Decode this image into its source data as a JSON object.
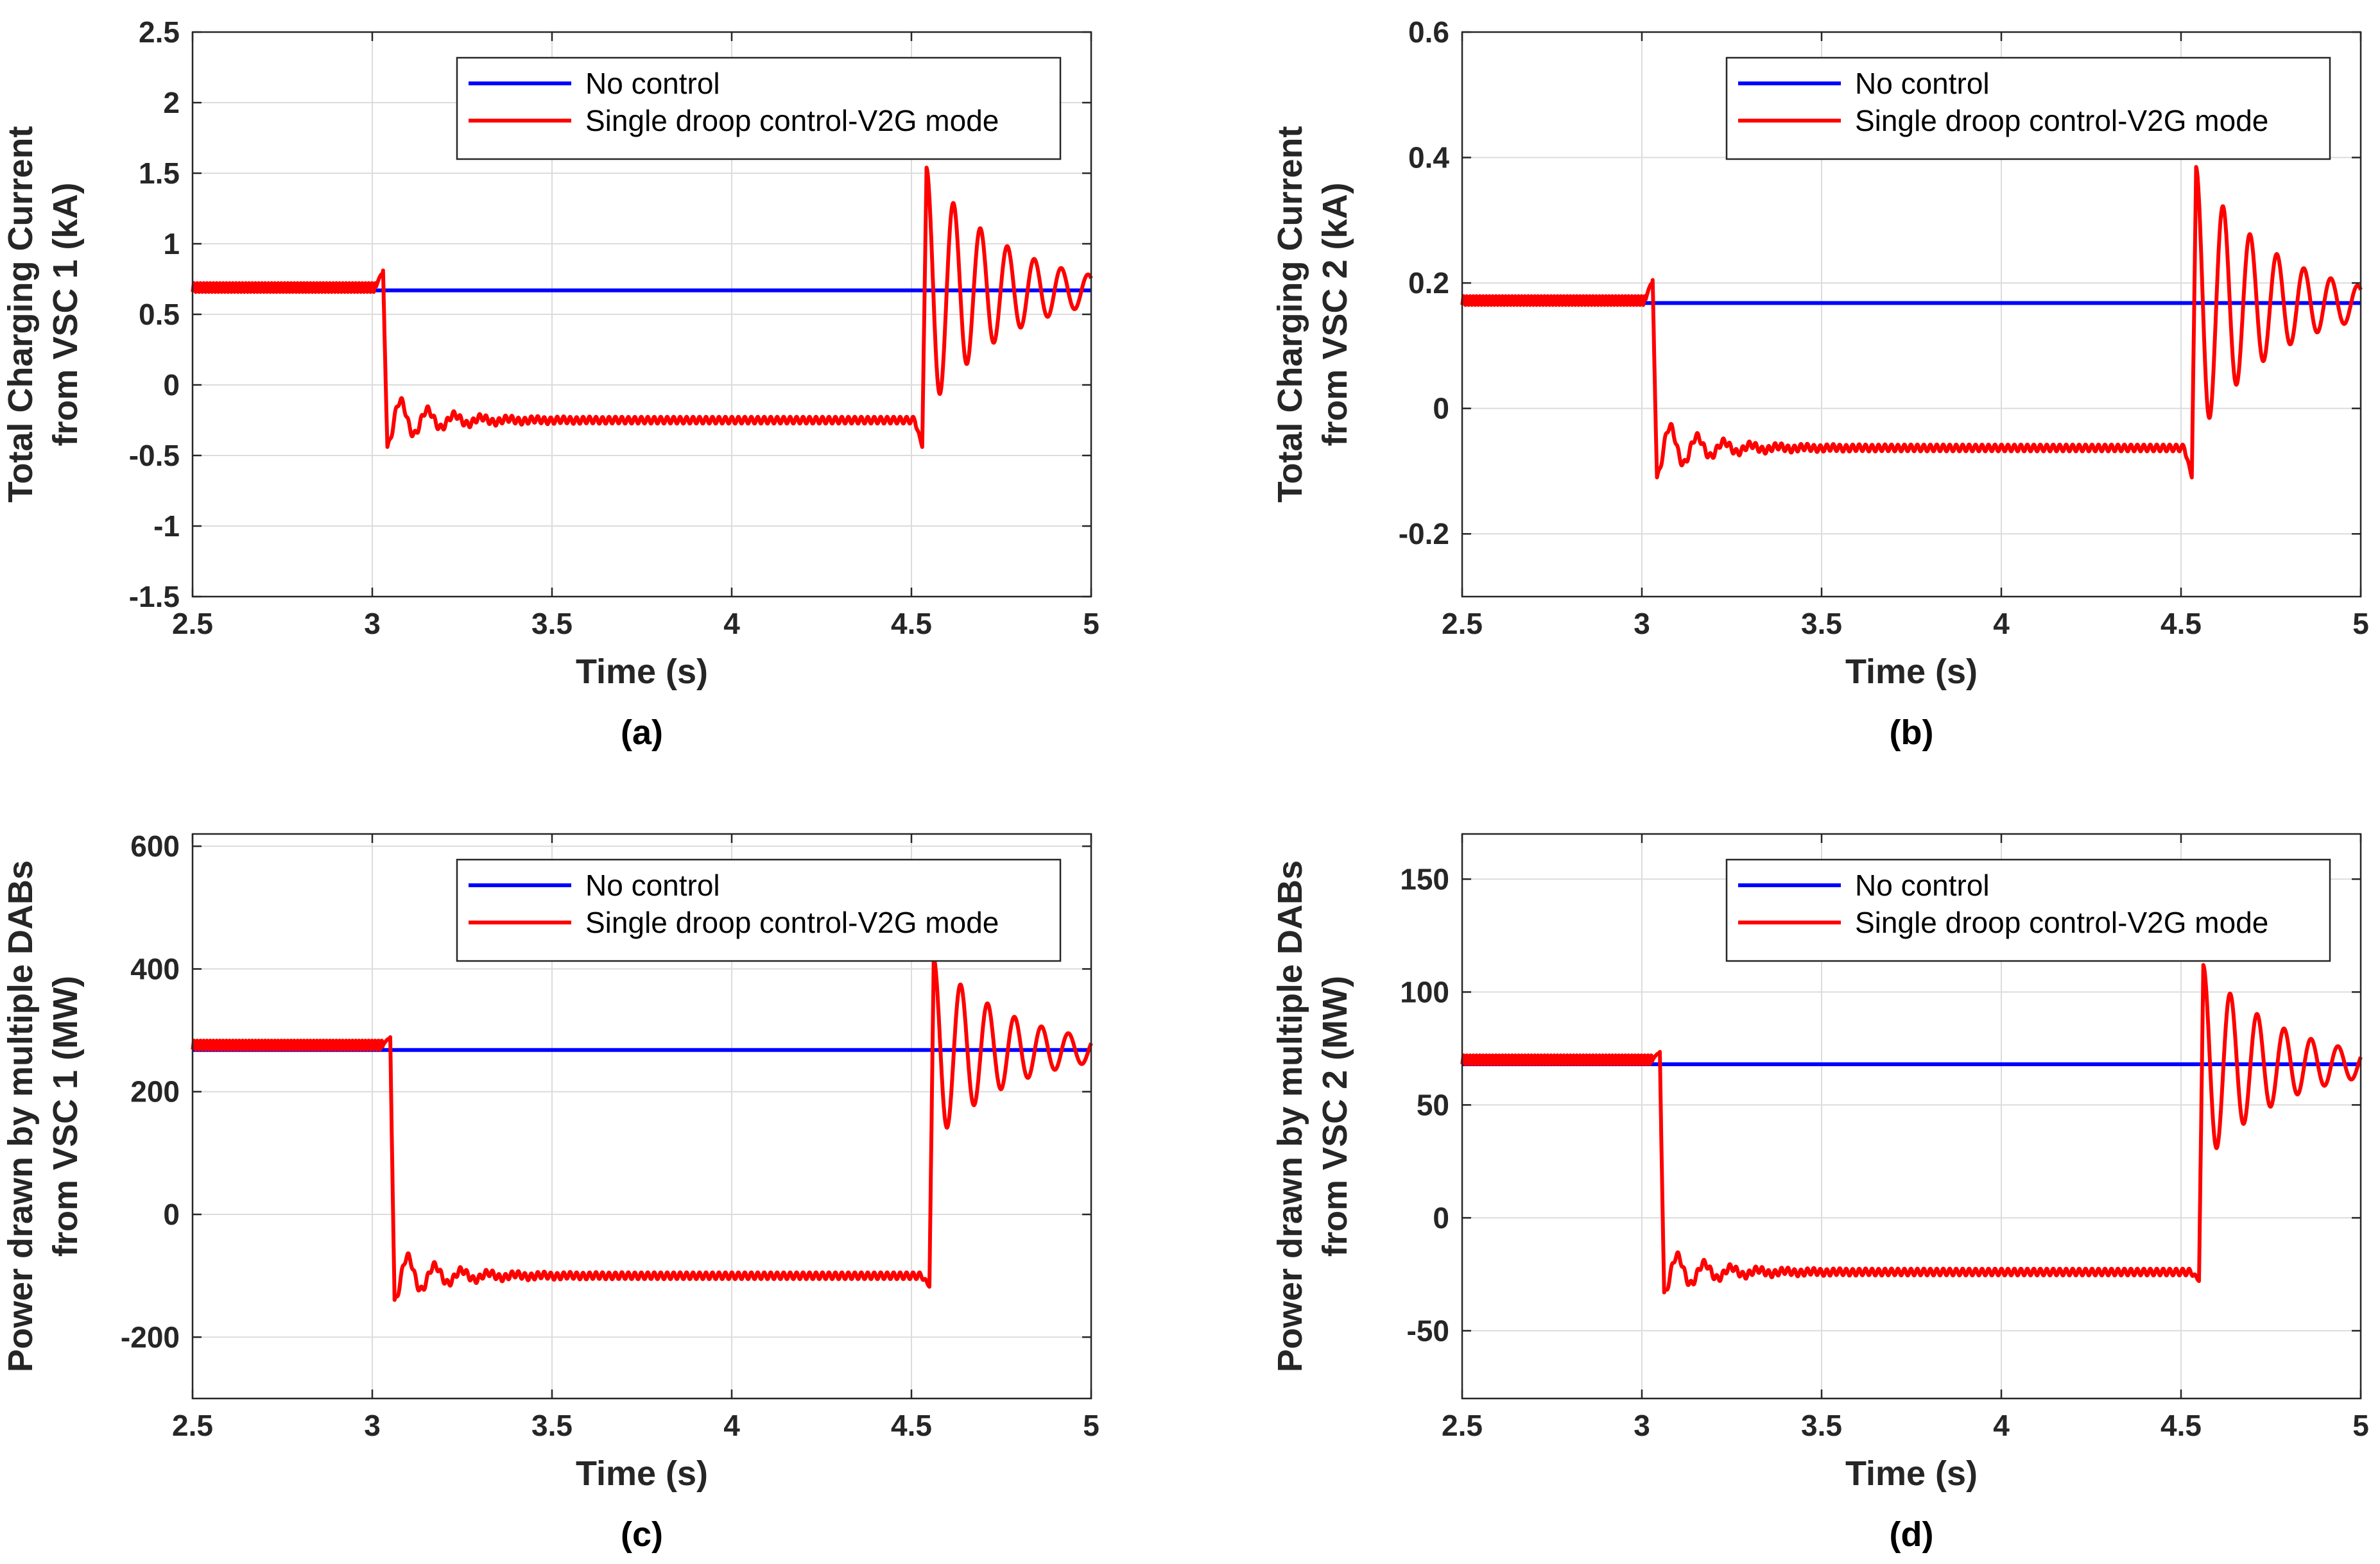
{
  "chart_data": [
    {
      "type": "line",
      "caption": "(a)",
      "xlabel": "Time (s)",
      "ylabel": [
        "Total Charging Current",
        "from VSC 1 (kA)"
      ],
      "xlim": [
        2.5,
        5
      ],
      "ylim": [
        -1.5,
        2.5
      ],
      "xticks": [
        2.5,
        3,
        3.5,
        4,
        4.5,
        5
      ],
      "xtick_labels": [
        "2.5",
        "3",
        "3.5",
        "4",
        "4.5",
        "5"
      ],
      "yticks": [
        -1.5,
        -1,
        -0.5,
        0,
        0.5,
        1,
        1.5,
        2,
        2.5
      ],
      "ytick_labels": [
        "-1.5",
        "-1",
        "-0.5",
        "0",
        "0.5",
        "1",
        "1.5",
        "2",
        "2.5"
      ],
      "grid": true,
      "legend_position": "top-right",
      "series": [
        {
          "name": "No control",
          "color": "#0000ff",
          "steady": 0.67
        },
        {
          "name": "Single droop control-V2G mode",
          "color": "#ff0000",
          "pre": 0.69,
          "low": -0.25,
          "high": 0.67,
          "t_drop": 3.03,
          "t_rise": 4.53,
          "drop_peak": 0.79,
          "drop_min": -0.44,
          "rise_dip": -0.44,
          "rise_peak": 1.54,
          "end_value": 0.64
        }
      ]
    },
    {
      "type": "line",
      "caption": "(b)",
      "xlabel": "Time (s)",
      "ylabel": [
        "Total Charging Current",
        "from VSC 2 (kA)"
      ],
      "xlim": [
        2.5,
        5
      ],
      "ylim": [
        -0.3,
        0.6
      ],
      "xticks": [
        2.5,
        3,
        3.5,
        4,
        4.5,
        5
      ],
      "xtick_labels": [
        "2.5",
        "3",
        "3.5",
        "4",
        "4.5",
        "5"
      ],
      "yticks": [
        -0.2,
        0,
        0.2,
        0.4,
        0.6
      ],
      "ytick_labels": [
        "-0.2",
        "0",
        "0.2",
        "0.4",
        "0.6"
      ],
      "grid": true,
      "legend_position": "top-right",
      "series": [
        {
          "name": "No control",
          "color": "#0000ff",
          "steady": 0.168
        },
        {
          "name": "Single droop control-V2G mode",
          "color": "#ff0000",
          "pre": 0.172,
          "low": -0.063,
          "high": 0.168,
          "t_drop": 3.03,
          "t_rise": 4.53,
          "drop_peak": 0.2,
          "drop_min": -0.11,
          "rise_dip": -0.11,
          "rise_peak": 0.385,
          "end_value": 0.16
        }
      ]
    },
    {
      "type": "line",
      "caption": "(c)",
      "xlabel": "Time (s)",
      "ylabel": [
        "Power drawn by multiple DABs",
        "from VSC 1 (MW)"
      ],
      "xlim": [
        2.5,
        5
      ],
      "ylim": [
        -300,
        620
      ],
      "xticks": [
        2.5,
        3,
        3.5,
        4,
        4.5,
        5
      ],
      "xtick_labels": [
        "2.5",
        "3",
        "3.5",
        "4",
        "4.5",
        "5"
      ],
      "yticks": [
        -200,
        0,
        200,
        400,
        600
      ],
      "ytick_labels": [
        "-200",
        "0",
        "200",
        "400",
        "600"
      ],
      "grid": true,
      "legend_position": "top-right",
      "series": [
        {
          "name": "No control",
          "color": "#0000ff",
          "steady": 268
        },
        {
          "name": "Single droop control-V2G mode",
          "color": "#ff0000",
          "pre": 276,
          "low": -100,
          "high": 268,
          "t_drop": 3.05,
          "t_rise": 4.55,
          "drop_peak": 287,
          "drop_min": -143,
          "rise_dip": -118,
          "rise_peak": 418,
          "end_value": 282
        }
      ]
    },
    {
      "type": "line",
      "caption": "(d)",
      "xlabel": "Time (s)",
      "ylabel": [
        "Power drawn by multiple DABs",
        "from VSC 2 (MW)"
      ],
      "xlim": [
        2.5,
        5
      ],
      "ylim": [
        -80,
        170
      ],
      "xticks": [
        2.5,
        3,
        3.5,
        4,
        4.5,
        5
      ],
      "xtick_labels": [
        "2.5",
        "3",
        "3.5",
        "4",
        "4.5",
        "5"
      ],
      "yticks": [
        -50,
        0,
        50,
        100,
        150
      ],
      "ytick_labels": [
        "-50",
        "0",
        "50",
        "100",
        "150"
      ],
      "grid": true,
      "legend_position": "top-right",
      "series": [
        {
          "name": "No control",
          "color": "#0000ff",
          "steady": 68
        },
        {
          "name": "Single droop control-V2G mode",
          "color": "#ff0000",
          "pre": 70,
          "low": -24,
          "high": 68,
          "t_drop": 3.05,
          "t_rise": 4.55,
          "drop_peak": 73,
          "drop_min": -34,
          "rise_dip": -28,
          "rise_peak": 112,
          "end_value": 72
        }
      ]
    }
  ]
}
